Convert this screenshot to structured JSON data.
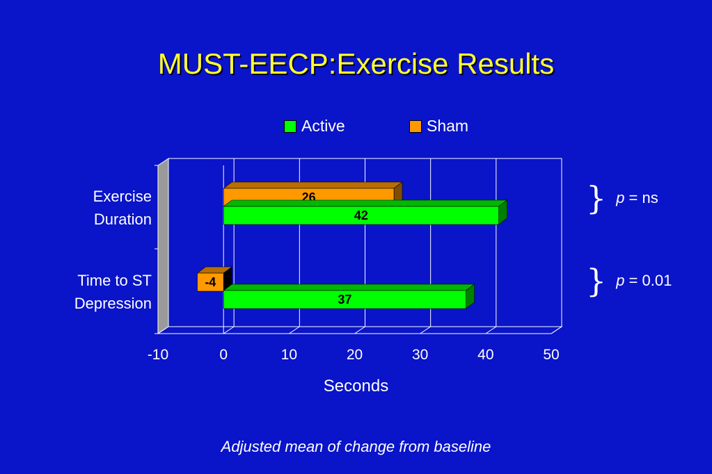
{
  "slide": {
    "title": "MUST-EECP:Exercise Results",
    "footnote": "Adjusted mean of change from baseline"
  },
  "annotations": [
    {
      "prefix": "p",
      "text": "= ns"
    },
    {
      "prefix": "p",
      "text": "= 0.01"
    }
  ],
  "chart_data": {
    "type": "bar",
    "orientation": "horizontal",
    "style": "3d",
    "categories": [
      "Exercise Duration",
      "Time to ST Depression"
    ],
    "category_lines": [
      [
        "Exercise",
        "Duration"
      ],
      [
        "Time to ST",
        "Depression"
      ]
    ],
    "series": [
      {
        "name": "Active",
        "values": [
          42,
          37
        ],
        "color": "#00ff00"
      },
      {
        "name": "Sham",
        "values": [
          26,
          -4
        ],
        "color": "#ff9900"
      }
    ],
    "xlabel": "Seconds",
    "xlim": [
      -10,
      50
    ],
    "xticks": [
      -10,
      0,
      10,
      20,
      30,
      40,
      50
    ],
    "grid": true,
    "legend": "top",
    "colors": {
      "background": "#0a14c8",
      "title": "#ffff33",
      "grid": "#ffffff",
      "wall": "#9a9a9a"
    }
  }
}
